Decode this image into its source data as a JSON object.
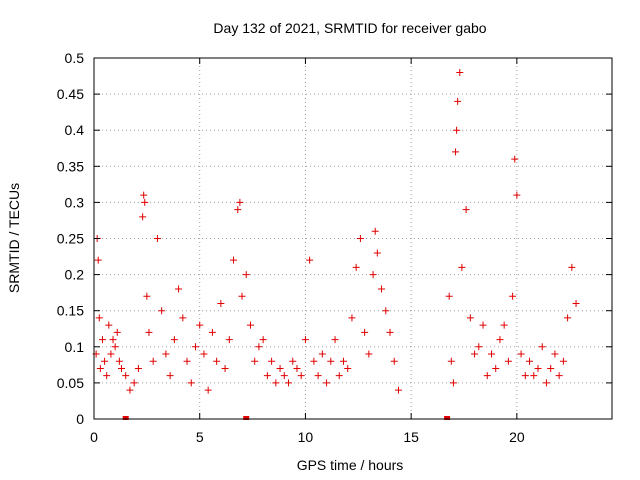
{
  "chart_data": {
    "type": "scatter",
    "title": "Day 132 of 2021, SRMTID for receiver gabo",
    "xlabel": "GPS time / hours",
    "ylabel": "SRMTID / TECUs",
    "xlim": [
      0,
      24.5
    ],
    "ylim": [
      0,
      0.5
    ],
    "xticks": [
      0,
      5,
      10,
      15,
      20
    ],
    "xtick_labels": [
      "0",
      "5",
      "10",
      "15",
      "20"
    ],
    "yticks": [
      0,
      0.05,
      0.1,
      0.15,
      0.2,
      0.25,
      0.3,
      0.35,
      0.4,
      0.45,
      0.5
    ],
    "ytick_labels": [
      "0",
      "0.05",
      "0.1",
      "0.15",
      "0.2",
      "0.25",
      "0.3",
      "0.35",
      "0.4",
      "0.45",
      "0.5"
    ],
    "grid": true,
    "marker": "+",
    "color": "#e00000",
    "data_gap_hours": [
      14.6,
      16.6
    ],
    "zero_flags_x": [
      1.5,
      7.2,
      16.7
    ],
    "series": [
      {
        "name": "SRMTID",
        "x": [
          0.1,
          0.15,
          0.2,
          0.25,
          0.3,
          0.4,
          0.5,
          0.6,
          0.7,
          0.8,
          0.9,
          1.0,
          1.1,
          1.2,
          1.3,
          1.5,
          1.7,
          1.9,
          2.1,
          2.3,
          2.35,
          2.4,
          2.5,
          2.6,
          2.8,
          3.0,
          3.2,
          3.4,
          3.6,
          3.8,
          4.0,
          4.2,
          4.4,
          4.6,
          4.8,
          5.0,
          5.2,
          5.4,
          5.6,
          5.8,
          6.0,
          6.2,
          6.4,
          6.6,
          6.8,
          6.9,
          7.0,
          7.2,
          7.4,
          7.6,
          7.8,
          8.0,
          8.2,
          8.4,
          8.6,
          8.8,
          9.0,
          9.2,
          9.4,
          9.6,
          9.8,
          10.0,
          10.2,
          10.4,
          10.6,
          10.8,
          11.0,
          11.2,
          11.4,
          11.6,
          11.8,
          12.0,
          12.2,
          12.4,
          12.6,
          12.8,
          13.0,
          13.2,
          13.3,
          13.4,
          13.6,
          13.8,
          14.0,
          14.2,
          14.4,
          16.8,
          16.9,
          17.0,
          17.1,
          17.15,
          17.2,
          17.3,
          17.4,
          17.6,
          17.8,
          18.0,
          18.2,
          18.4,
          18.6,
          18.8,
          19.0,
          19.2,
          19.4,
          19.6,
          19.8,
          19.9,
          20.0,
          20.2,
          20.4,
          20.6,
          20.8,
          21.0,
          21.2,
          21.4,
          21.6,
          21.8,
          22.0,
          22.2,
          22.4,
          22.6,
          22.8
        ],
        "y": [
          0.09,
          0.25,
          0.22,
          0.14,
          0.07,
          0.11,
          0.08,
          0.06,
          0.13,
          0.09,
          0.11,
          0.1,
          0.12,
          0.08,
          0.07,
          0.06,
          0.04,
          0.05,
          0.07,
          0.28,
          0.31,
          0.3,
          0.17,
          0.12,
          0.08,
          0.25,
          0.15,
          0.09,
          0.06,
          0.11,
          0.18,
          0.14,
          0.08,
          0.05,
          0.1,
          0.13,
          0.09,
          0.04,
          0.12,
          0.08,
          0.16,
          0.07,
          0.11,
          0.22,
          0.29,
          0.3,
          0.17,
          0.2,
          0.13,
          0.08,
          0.1,
          0.11,
          0.06,
          0.08,
          0.05,
          0.07,
          0.06,
          0.05,
          0.08,
          0.07,
          0.06,
          0.11,
          0.22,
          0.08,
          0.06,
          0.09,
          0.05,
          0.08,
          0.11,
          0.06,
          0.08,
          0.07,
          0.14,
          0.21,
          0.25,
          0.12,
          0.09,
          0.2,
          0.26,
          0.23,
          0.18,
          0.15,
          0.12,
          0.08,
          0.04,
          0.17,
          0.08,
          0.05,
          0.37,
          0.4,
          0.44,
          0.48,
          0.21,
          0.29,
          0.14,
          0.09,
          0.1,
          0.13,
          0.06,
          0.09,
          0.07,
          0.11,
          0.13,
          0.08,
          0.17,
          0.36,
          0.31,
          0.09,
          0.06,
          0.08,
          0.06,
          0.07,
          0.1,
          0.05,
          0.07,
          0.09,
          0.06,
          0.08,
          0.14,
          0.21,
          0.16
        ]
      }
    ]
  }
}
